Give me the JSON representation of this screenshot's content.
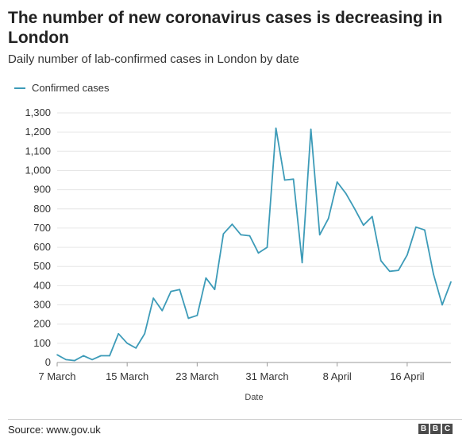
{
  "header": {
    "title": "The number of new coronavirus cases is decreasing in London",
    "subtitle": "Daily number of lab-confirmed cases in London by date"
  },
  "footer": {
    "source": "Source: www.gov.uk",
    "logo_letters": [
      "B",
      "B",
      "C"
    ]
  },
  "colors": {
    "line": "#3d9bb8",
    "grid": "#e6e6e6",
    "axis": "#999999"
  },
  "chart_data": {
    "type": "line",
    "title": "The number of new coronavirus cases is decreasing in London",
    "subtitle": "Daily number of lab-confirmed cases in London by date",
    "xlabel": "Date",
    "ylabel": "",
    "ylim": [
      0,
      1300
    ],
    "yticks": [
      "0",
      "100",
      "200",
      "300",
      "400",
      "500",
      "600",
      "700",
      "800",
      "900",
      "1,000",
      "1,100",
      "1,200",
      "1,300"
    ],
    "xtick_labels": [
      "7 March",
      "15 March",
      "23 March",
      "31 March",
      "8 April",
      "16 April"
    ],
    "xtick_index": [
      0,
      8,
      16,
      24,
      32,
      40
    ],
    "grid": "horizontal",
    "legend_position": "top-left",
    "series": [
      {
        "name": "Confirmed cases",
        "values": [
          40,
          15,
          10,
          35,
          15,
          35,
          35,
          150,
          100,
          75,
          150,
          335,
          270,
          370,
          380,
          230,
          245,
          440,
          380,
          670,
          720,
          665,
          660,
          570,
          600,
          1220,
          950,
          955,
          520,
          1215,
          665,
          750,
          940,
          880,
          800,
          715,
          760,
          530,
          475,
          480,
          560,
          705,
          690,
          460,
          300,
          420
        ]
      }
    ]
  }
}
